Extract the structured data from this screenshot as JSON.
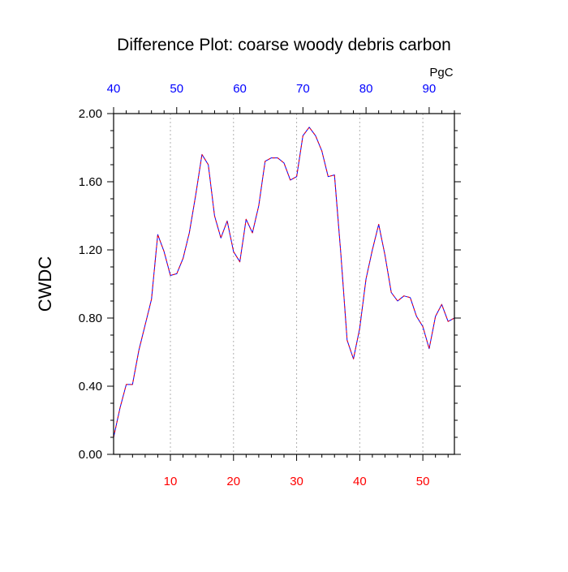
{
  "chart_data": {
    "type": "line",
    "title": "Difference Plot: coarse woody debris carbon",
    "ylabel": "CWDC",
    "top_axis_unit": "PgC",
    "xlim": [
      1,
      55
    ],
    "ylim": [
      0,
      2
    ],
    "top_xlim": [
      40,
      94
    ],
    "grid": "vertical dotted lines at bottom-axis major ticks",
    "y_ticks": [
      {
        "value": 0.0,
        "label": "0.00"
      },
      {
        "value": 0.4,
        "label": "0.40"
      },
      {
        "value": 0.8,
        "label": "0.80"
      },
      {
        "value": 1.2,
        "label": "1.20"
      },
      {
        "value": 1.6,
        "label": "1.60"
      },
      {
        "value": 2.0,
        "label": "2.00"
      }
    ],
    "bottom_ticks": [
      {
        "value": 10,
        "label": "10"
      },
      {
        "value": 20,
        "label": "20"
      },
      {
        "value": 30,
        "label": "30"
      },
      {
        "value": 40,
        "label": "40"
      },
      {
        "value": 50,
        "label": "50"
      }
    ],
    "top_ticks": [
      {
        "value": 40,
        "label": "40"
      },
      {
        "value": 50,
        "label": "50"
      },
      {
        "value": 60,
        "label": "60"
      },
      {
        "value": 70,
        "label": "70"
      },
      {
        "value": 80,
        "label": "80"
      },
      {
        "value": 90,
        "label": "90"
      }
    ],
    "colors": {
      "bottom_tick_labels": "#ff0000",
      "top_tick_labels": "#0000ff",
      "series_a": "#0000ff",
      "series_b": "#ff0000",
      "axes": "#000000",
      "grid": "#b0b0b0"
    },
    "x": [
      1,
      2,
      3,
      4,
      5,
      6,
      7,
      8,
      9,
      10,
      11,
      12,
      13,
      14,
      15,
      16,
      17,
      18,
      19,
      20,
      21,
      22,
      23,
      24,
      25,
      26,
      27,
      28,
      29,
      30,
      31,
      32,
      33,
      34,
      35,
      36,
      37,
      38,
      39,
      40,
      41,
      42,
      43,
      44,
      45,
      46,
      47,
      48,
      49,
      50,
      51,
      52,
      53,
      54,
      55
    ],
    "series": [
      {
        "values": [
          0.1,
          0.27,
          0.41,
          0.41,
          0.61,
          0.76,
          0.91,
          1.29,
          1.19,
          1.05,
          1.06,
          1.15,
          1.3,
          1.52,
          1.76,
          1.7,
          1.4,
          1.27,
          1.37,
          1.19,
          1.13,
          1.38,
          1.3,
          1.46,
          1.72,
          1.74,
          1.74,
          1.71,
          1.61,
          1.63,
          1.87,
          1.92,
          1.87,
          1.78,
          1.63,
          1.64,
          1.18,
          0.67,
          0.56,
          0.74,
          1.03,
          1.2,
          1.35,
          1.17,
          0.95,
          0.9,
          0.93,
          0.92,
          0.81,
          0.75,
          0.62,
          0.81,
          0.88,
          0.78,
          0.8
        ]
      },
      {
        "values": [
          0.1,
          0.27,
          0.41,
          0.41,
          0.61,
          0.76,
          0.91,
          1.29,
          1.19,
          1.05,
          1.06,
          1.15,
          1.3,
          1.52,
          1.76,
          1.7,
          1.4,
          1.27,
          1.37,
          1.19,
          1.13,
          1.38,
          1.3,
          1.46,
          1.72,
          1.74,
          1.74,
          1.71,
          1.61,
          1.63,
          1.87,
          1.92,
          1.87,
          1.78,
          1.63,
          1.64,
          1.18,
          0.67,
          0.56,
          0.74,
          1.03,
          1.2,
          1.35,
          1.17,
          0.95,
          0.9,
          0.93,
          0.92,
          0.81,
          0.75,
          0.62,
          0.81,
          0.88,
          0.78,
          0.8
        ]
      }
    ]
  }
}
